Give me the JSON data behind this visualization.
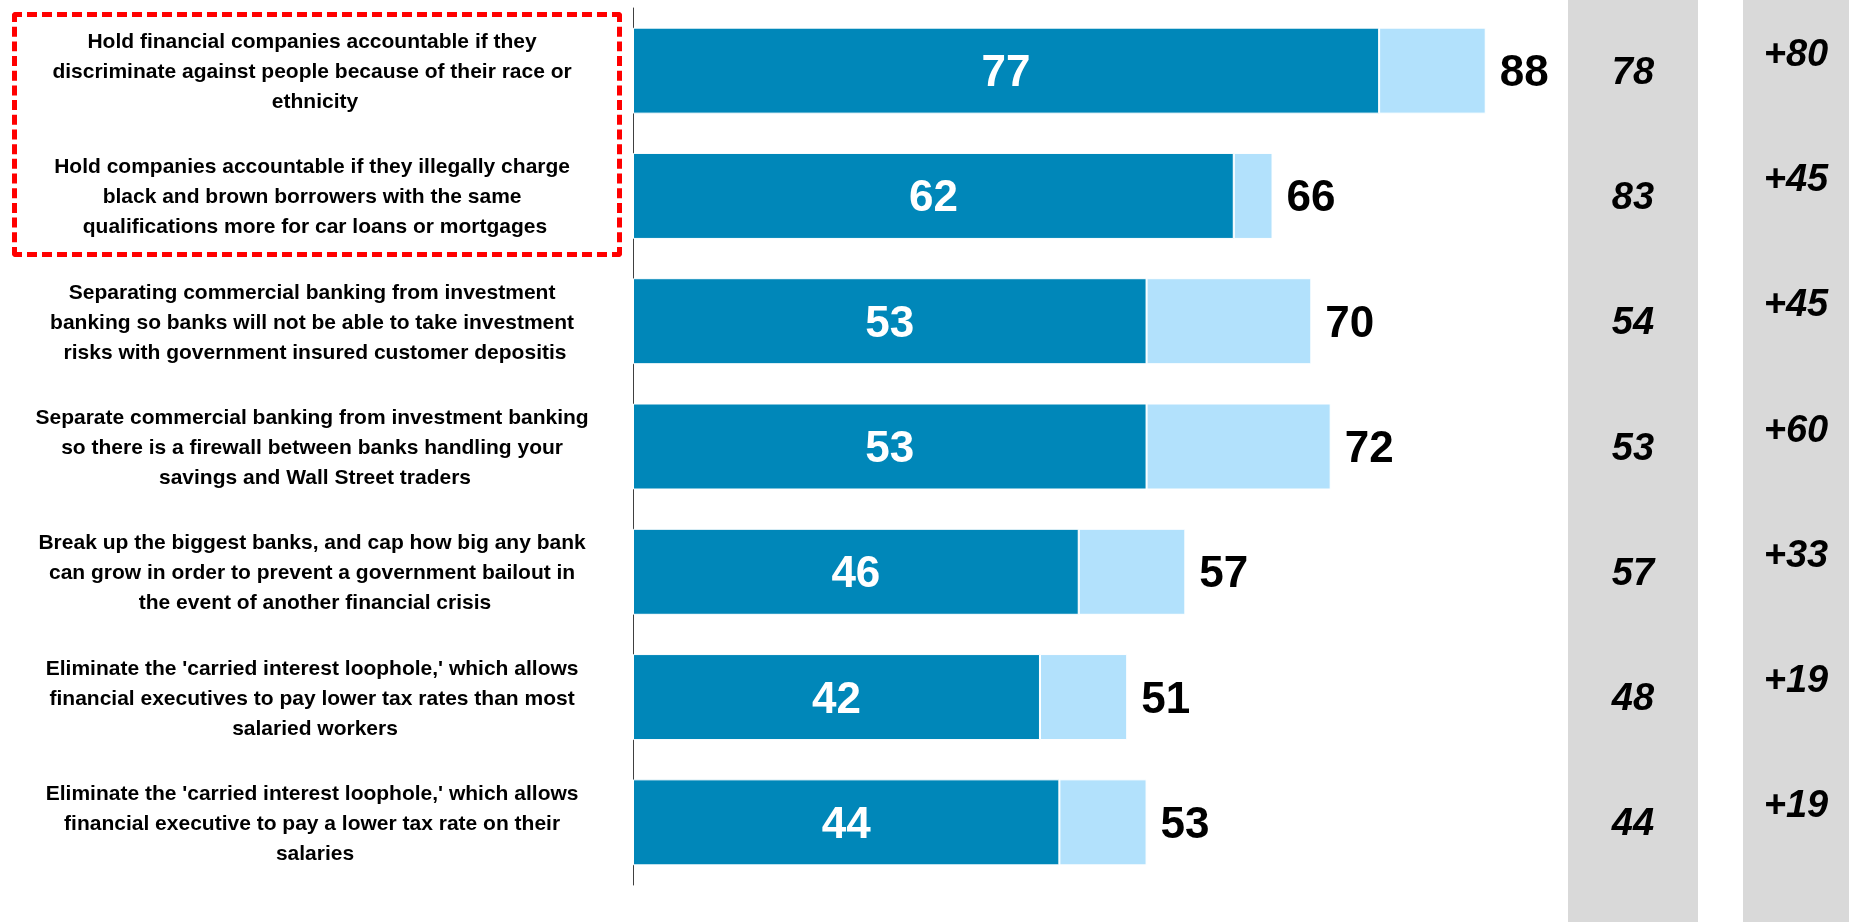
{
  "chart_data": {
    "type": "bar",
    "orientation": "horizontal",
    "stacked": true,
    "categories": [
      "Hold financial companies accountable if they discriminate against people because of their race or ethnicity",
      "Hold companies accountable if they illegally charge black and brown borrowers with the same qualifications more for car loans or mortgages",
      "Separating commercial banking from investment banking so banks will not be able to take investment risks with government insured customer depositis",
      "Separate commercial banking from investment banking so there is a firewall between banks handling your savings and Wall Street traders",
      "Break up the biggest banks, and cap how big any bank can grow in order to prevent a government bailout in the event of another financial crisis",
      "Eliminate the 'carried interest loophole,' which allows financial executives to pay lower tax rates than most salaried workers",
      "Eliminate the 'carried interest loophole,' which allows financial executive to pay a lower tax rate on their salaries"
    ],
    "series": [
      {
        "color": "#0087b9",
        "values": [
          77,
          62,
          53,
          53,
          46,
          42,
          44
        ],
        "value_labels": [
          "77",
          "62",
          "53",
          "53",
          "46",
          "42",
          "44"
        ]
      },
      {
        "color": "#b2e1fc",
        "values": [
          11,
          4,
          17,
          19,
          11,
          9,
          9
        ]
      }
    ],
    "totals": [
      "88",
      "66",
      "70",
      "72",
      "57",
      "51",
      "53"
    ],
    "annotations": [
      "78",
      "+80",
      "83",
      "+45",
      "54",
      "+45",
      "53",
      "+60",
      "57",
      "+33",
      "48",
      "+19",
      "44",
      "+19"
    ]
  }
}
